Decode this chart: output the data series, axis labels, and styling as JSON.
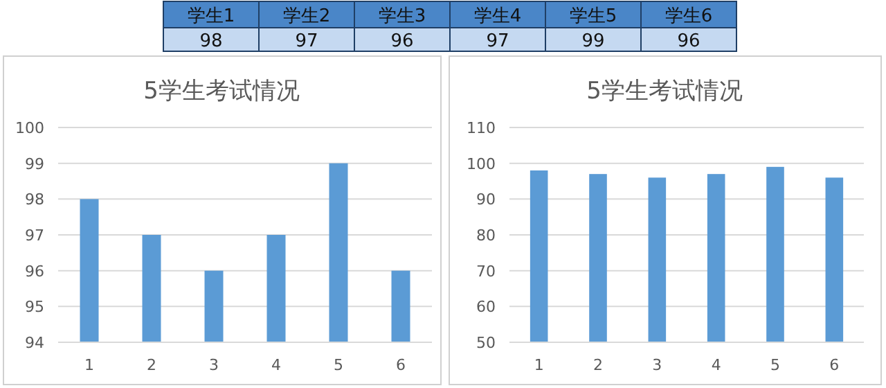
{
  "chart_data": [
    {
      "type": "other",
      "categories": [
        "学生1",
        "学生2",
        "学生3",
        "学生4",
        "学生5",
        "学生6"
      ],
      "values": [
        98,
        97,
        96,
        97,
        99,
        96
      ],
      "data_labels": true
    },
    {
      "type": "bar",
      "title": "5学生考试情况",
      "categories": [
        "1",
        "2",
        "3",
        "4",
        "5",
        "6"
      ],
      "values": [
        98,
        97,
        96,
        97,
        99,
        96
      ],
      "color": "#5b9bd5",
      "ylim": [
        94,
        100
      ],
      "yticks": [
        94,
        95,
        96,
        97,
        98,
        99,
        100
      ],
      "grid": "y"
    },
    {
      "type": "bar",
      "title": "5学生考试情况",
      "categories": [
        "1",
        "2",
        "3",
        "4",
        "5",
        "6"
      ],
      "values": [
        98,
        97,
        96,
        97,
        99,
        96
      ],
      "color": "#5b9bd5",
      "ylim": [
        50,
        110
      ],
      "yticks": [
        50,
        60,
        70,
        80,
        90,
        100,
        110
      ],
      "grid": "y"
    }
  ]
}
